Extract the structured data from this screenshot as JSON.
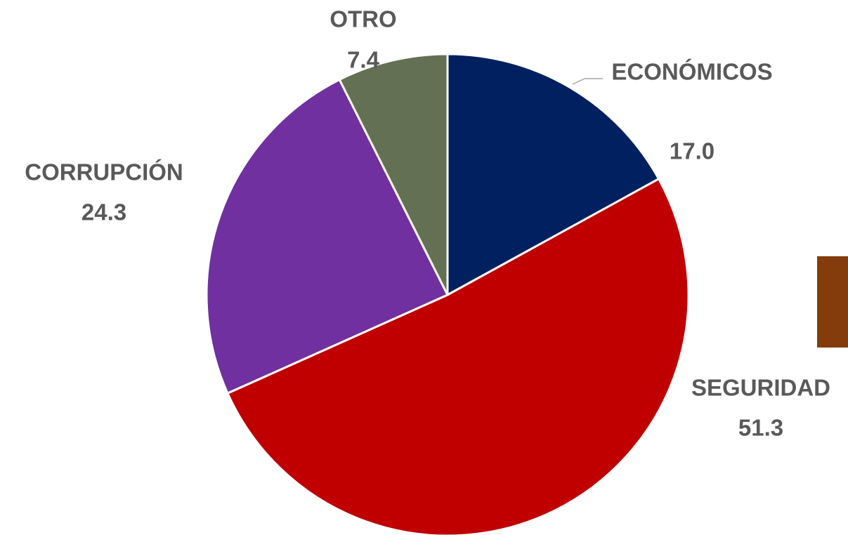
{
  "chart_data": {
    "type": "pie",
    "categories": [
      "ECONÓMICOS",
      "SEGURIDAD",
      "CORRUPCIÓN",
      "OTRO"
    ],
    "values": [
      17.0,
      51.3,
      24.3,
      7.4
    ],
    "value_labels": [
      "17.0",
      "51.3",
      "24.3",
      "7.4"
    ],
    "colors": [
      "#002060",
      "#c00000",
      "#7030a0",
      "#637053"
    ]
  }
}
